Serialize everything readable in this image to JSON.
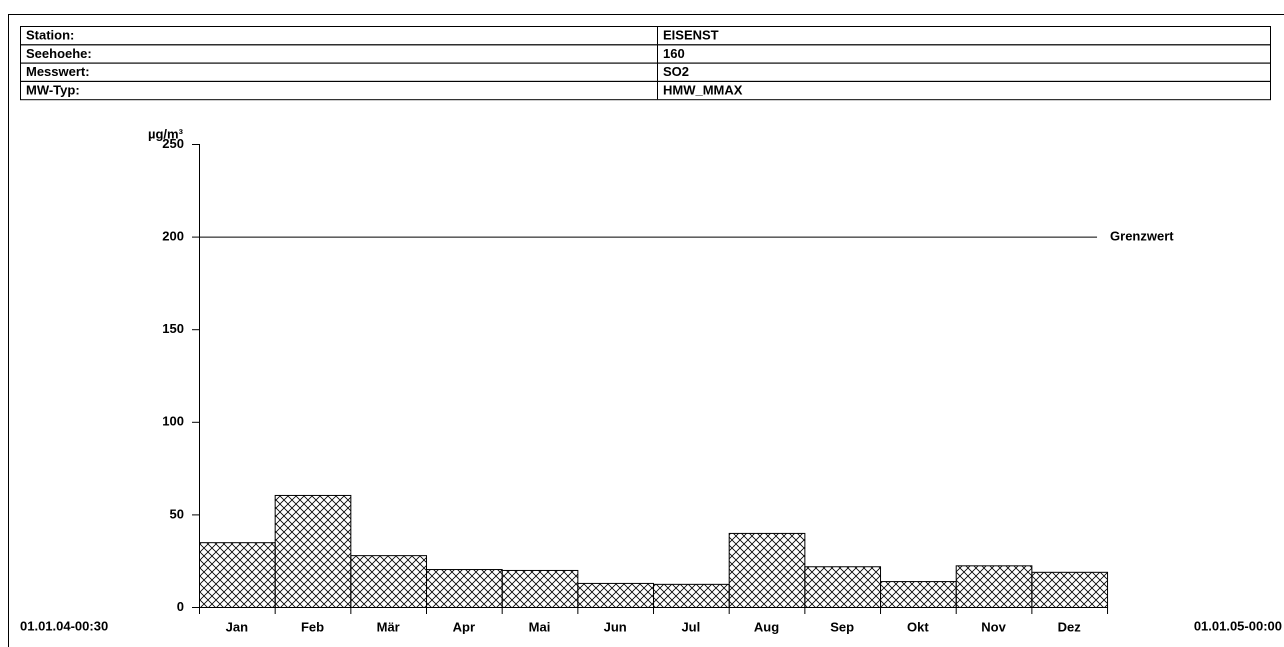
{
  "header": {
    "rows": [
      [
        "Station:",
        "EISENST"
      ],
      [
        "Seehoehe:",
        "160"
      ],
      [
        "Messwert:",
        "SO2"
      ],
      [
        "MW-Typ:",
        "HMW_MMAX"
      ]
    ]
  },
  "chart_data": {
    "type": "bar",
    "y_label": "µg/m³",
    "categories": [
      "Jan",
      "Feb",
      "Mär",
      "Apr",
      "Mai",
      "Jun",
      "Jul",
      "Aug",
      "Sep",
      "Okt",
      "Nov",
      "Dez"
    ],
    "values": [
      35,
      60.5,
      28,
      20.5,
      20,
      13,
      12.5,
      40,
      22,
      14,
      22.5,
      19
    ],
    "color": "#000000",
    "pattern": "crosshatch",
    "ylim": [
      0,
      250
    ],
    "yticks": [
      0,
      50,
      100,
      150,
      200,
      250
    ],
    "start_label": "01.01.04-00:30",
    "end_label": "01.01.05-00:00",
    "threshold": {
      "value": 200,
      "label": "Grenzwert"
    }
  }
}
